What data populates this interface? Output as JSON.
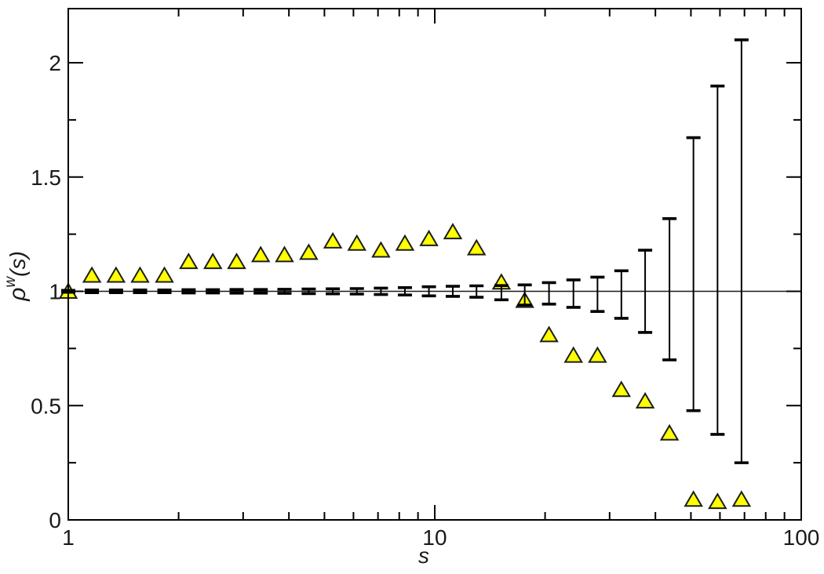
{
  "page": {
    "background": "#ffffff"
  },
  "chart_data": {
    "type": "scatter",
    "title": "",
    "xlabel": "s",
    "ylabel": "ρ^w(s)",
    "ylabel_parts": {
      "base": "ρ",
      "sup": "w",
      "rest": "(s)"
    },
    "x_scale": "log",
    "xlim": [
      1,
      100
    ],
    "ylim": [
      0,
      2.24
    ],
    "x_major_ticks": [
      1,
      10,
      100
    ],
    "x_major_labels": [
      "1",
      "10",
      "100"
    ],
    "x_minor_ticks": [
      2,
      3,
      4,
      5,
      6,
      7,
      8,
      9,
      20,
      30,
      40,
      50,
      60,
      70,
      80,
      90
    ],
    "y_major_ticks": [
      0,
      0.5,
      1,
      1.5,
      2
    ],
    "y_major_labels": [
      "0",
      "0.5",
      "1",
      "1.5",
      "2"
    ],
    "y_minor_ticks": [
      0.25,
      0.75,
      1.25,
      1.75
    ],
    "reference_line_y": 1,
    "grid": false,
    "legend": null,
    "colors": {
      "marker_fill": "#ffff00",
      "marker_stroke": "#1c1c1c",
      "axis": "#000000",
      "error_bar": "#000000",
      "reference_line": "#1a1a1a",
      "text": "#1a1a1a"
    },
    "series": [
      {
        "name": "rho_w_triangles",
        "type": "scatter",
        "marker": "triangle-up",
        "x": [
          1.0,
          1.16,
          1.35,
          1.57,
          1.83,
          2.13,
          2.48,
          2.88,
          3.35,
          3.89,
          4.53,
          5.27,
          6.13,
          7.13,
          8.29,
          9.64,
          11.2,
          13.0,
          15.2,
          17.6,
          20.5,
          23.9,
          27.8,
          32.3,
          37.5,
          43.7,
          50.8,
          59.1,
          68.7
        ],
        "y": [
          1.0,
          1.07,
          1.07,
          1.07,
          1.07,
          1.13,
          1.13,
          1.13,
          1.16,
          1.16,
          1.17,
          1.22,
          1.21,
          1.18,
          1.21,
          1.23,
          1.26,
          1.19,
          1.04,
          0.96,
          0.81,
          0.72,
          0.72,
          0.57,
          0.52,
          0.38,
          0.09,
          0.08,
          0.09
        ]
      },
      {
        "name": "error_bars",
        "type": "errorbar",
        "x": [
          1.0,
          1.16,
          1.35,
          1.57,
          1.83,
          2.13,
          2.48,
          2.88,
          3.35,
          3.89,
          4.53,
          5.27,
          6.13,
          7.13,
          8.29,
          9.64,
          11.2,
          13.0,
          15.2,
          17.6,
          20.5,
          23.9,
          27.8,
          32.3,
          37.5,
          43.7,
          50.8,
          59.1,
          68.7
        ],
        "low": [
          0.996,
          0.994,
          0.994,
          0.994,
          0.994,
          0.993,
          0.993,
          0.992,
          0.992,
          0.991,
          0.99,
          0.989,
          0.988,
          0.986,
          0.984,
          0.98,
          0.978,
          0.974,
          0.963,
          0.94,
          0.944,
          0.93,
          0.912,
          0.882,
          0.82,
          0.7,
          0.478,
          0.374,
          0.25
        ],
        "high": [
          1.004,
          1.006,
          1.006,
          1.006,
          1.006,
          1.007,
          1.007,
          1.008,
          1.008,
          1.009,
          1.01,
          1.011,
          1.012,
          1.014,
          1.016,
          1.02,
          1.022,
          1.024,
          1.025,
          1.028,
          1.038,
          1.05,
          1.062,
          1.09,
          1.18,
          1.318,
          1.672,
          1.898,
          2.1
        ]
      }
    ]
  }
}
